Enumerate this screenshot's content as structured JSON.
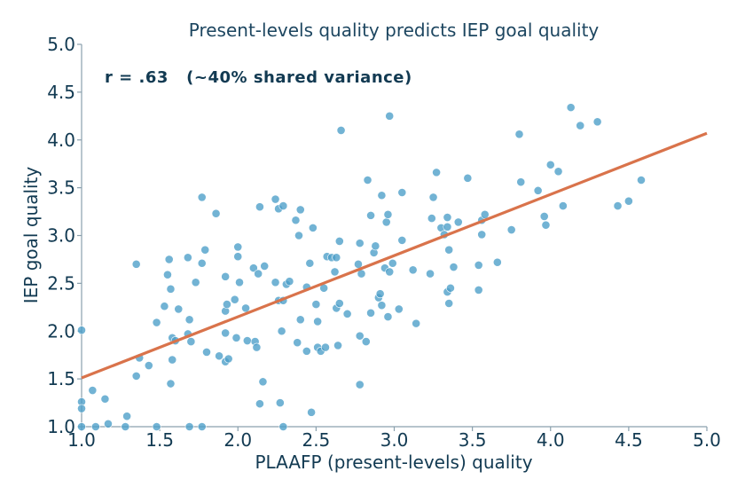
{
  "chart_data": {
    "type": "scatter",
    "title": "Present-levels quality predicts IEP goal quality",
    "xlabel": "PLAAFP (present-levels) quality",
    "ylabel": "IEP goal quality",
    "xlim": [
      1.0,
      5.0
    ],
    "ylim": [
      1.0,
      5.0
    ],
    "xticks": [
      1.0,
      1.5,
      2.0,
      2.5,
      3.0,
      3.5,
      4.0,
      4.5,
      5.0
    ],
    "yticks": [
      1.0,
      1.5,
      2.0,
      2.5,
      3.0,
      3.5,
      4.0,
      4.5,
      5.0
    ],
    "tick_labels_x": [
      "1.0",
      "1.5",
      "2.0",
      "2.5",
      "3.0",
      "3.5",
      "4.0",
      "4.5",
      "5.0"
    ],
    "tick_labels_y": [
      "1.0",
      "1.5",
      "2.0",
      "2.5",
      "3.0",
      "3.5",
      "4.0",
      "4.5",
      "5.0"
    ],
    "annotation": "r = .63   (~40% shared variance)",
    "grid": false,
    "colors": {
      "points": "#4a9ec8",
      "fit_line": "#d9734b",
      "text": "#123a52"
    },
    "fit_line": {
      "x": [
        1.0,
        5.0
      ],
      "y": [
        1.51,
        4.07
      ]
    },
    "points": [
      [
        1.0,
        2.01
      ],
      [
        1.0,
        1.26
      ],
      [
        1.0,
        1.19
      ],
      [
        1.0,
        1.0
      ],
      [
        1.07,
        1.38
      ],
      [
        1.09,
        1.0
      ],
      [
        1.15,
        1.29
      ],
      [
        1.17,
        1.03
      ],
      [
        1.28,
        1.0
      ],
      [
        1.29,
        1.11
      ],
      [
        1.35,
        2.7
      ],
      [
        1.35,
        1.53
      ],
      [
        1.37,
        1.72
      ],
      [
        1.43,
        1.64
      ],
      [
        1.48,
        2.09
      ],
      [
        1.48,
        1.0
      ],
      [
        1.53,
        2.26
      ],
      [
        1.55,
        2.59
      ],
      [
        1.56,
        2.75
      ],
      [
        1.57,
        2.44
      ],
      [
        1.57,
        1.45
      ],
      [
        1.58,
        1.93
      ],
      [
        1.58,
        1.7
      ],
      [
        1.6,
        1.9
      ],
      [
        1.62,
        2.23
      ],
      [
        1.68,
        2.77
      ],
      [
        1.68,
        1.97
      ],
      [
        1.69,
        2.12
      ],
      [
        1.69,
        1.0
      ],
      [
        1.7,
        1.89
      ],
      [
        1.73,
        2.51
      ],
      [
        1.77,
        3.4
      ],
      [
        1.77,
        2.71
      ],
      [
        1.77,
        1.0
      ],
      [
        1.79,
        2.85
      ],
      [
        1.8,
        1.78
      ],
      [
        1.86,
        3.23
      ],
      [
        1.88,
        1.74
      ],
      [
        1.92,
        2.57
      ],
      [
        1.92,
        2.21
      ],
      [
        1.92,
        1.98
      ],
      [
        1.92,
        1.68
      ],
      [
        1.93,
        2.28
      ],
      [
        1.94,
        1.71
      ],
      [
        1.98,
        2.33
      ],
      [
        1.99,
        1.93
      ],
      [
        2.0,
        2.88
      ],
      [
        2.0,
        2.78
      ],
      [
        2.01,
        2.51
      ],
      [
        2.05,
        2.24
      ],
      [
        2.06,
        1.9
      ],
      [
        2.1,
        2.66
      ],
      [
        2.11,
        1.89
      ],
      [
        2.12,
        1.83
      ],
      [
        2.13,
        2.6
      ],
      [
        2.14,
        3.3
      ],
      [
        2.14,
        1.24
      ],
      [
        2.16,
        1.47
      ],
      [
        2.17,
        2.68
      ],
      [
        2.24,
        3.38
      ],
      [
        2.24,
        2.51
      ],
      [
        2.26,
        2.32
      ],
      [
        2.26,
        3.28
      ],
      [
        2.27,
        1.25
      ],
      [
        2.28,
        2.0
      ],
      [
        2.29,
        3.31
      ],
      [
        2.29,
        2.32
      ],
      [
        2.29,
        1.0
      ],
      [
        2.31,
        2.49
      ],
      [
        2.33,
        2.52
      ],
      [
        2.37,
        3.16
      ],
      [
        2.38,
        1.88
      ],
      [
        2.39,
        3.0
      ],
      [
        2.4,
        3.27
      ],
      [
        2.4,
        2.12
      ],
      [
        2.44,
        2.46
      ],
      [
        2.44,
        1.79
      ],
      [
        2.46,
        2.71
      ],
      [
        2.47,
        1.15
      ],
      [
        2.48,
        3.08
      ],
      [
        2.5,
        2.28
      ],
      [
        2.51,
        2.1
      ],
      [
        2.51,
        1.83
      ],
      [
        2.53,
        1.79
      ],
      [
        2.55,
        2.45
      ],
      [
        2.56,
        1.83
      ],
      [
        2.57,
        2.78
      ],
      [
        2.6,
        2.77
      ],
      [
        2.62,
        2.62
      ],
      [
        2.63,
        2.77
      ],
      [
        2.63,
        2.24
      ],
      [
        2.64,
        1.85
      ],
      [
        2.65,
        2.29
      ],
      [
        2.65,
        2.94
      ],
      [
        2.66,
        4.1
      ],
      [
        2.7,
        2.18
      ],
      [
        2.77,
        2.7
      ],
      [
        2.78,
        1.95
      ],
      [
        2.78,
        2.92
      ],
      [
        2.78,
        1.44
      ],
      [
        2.79,
        2.6
      ],
      [
        2.82,
        1.89
      ],
      [
        2.83,
        3.58
      ],
      [
        2.85,
        3.21
      ],
      [
        2.85,
        2.19
      ],
      [
        2.87,
        2.82
      ],
      [
        2.88,
        2.89
      ],
      [
        2.9,
        2.35
      ],
      [
        2.91,
        2.39
      ],
      [
        2.92,
        3.42
      ],
      [
        2.92,
        2.27
      ],
      [
        2.94,
        2.66
      ],
      [
        2.95,
        3.14
      ],
      [
        2.96,
        2.15
      ],
      [
        2.96,
        3.22
      ],
      [
        2.97,
        2.62
      ],
      [
        2.97,
        4.25
      ],
      [
        2.99,
        2.71
      ],
      [
        3.03,
        2.23
      ],
      [
        3.05,
        3.45
      ],
      [
        3.05,
        2.95
      ],
      [
        3.12,
        2.64
      ],
      [
        3.14,
        2.08
      ],
      [
        3.23,
        2.6
      ],
      [
        3.24,
        3.18
      ],
      [
        3.25,
        3.4
      ],
      [
        3.27,
        3.66
      ],
      [
        3.3,
        3.08
      ],
      [
        3.32,
        3.01
      ],
      [
        3.34,
        3.19
      ],
      [
        3.34,
        3.09
      ],
      [
        3.34,
        2.41
      ],
      [
        3.35,
        2.85
      ],
      [
        3.35,
        2.29
      ],
      [
        3.36,
        2.45
      ],
      [
        3.38,
        2.67
      ],
      [
        3.41,
        3.14
      ],
      [
        3.47,
        3.6
      ],
      [
        3.54,
        2.69
      ],
      [
        3.54,
        2.43
      ],
      [
        3.56,
        3.01
      ],
      [
        3.56,
        3.16
      ],
      [
        3.58,
        3.22
      ],
      [
        3.66,
        2.72
      ],
      [
        3.75,
        3.06
      ],
      [
        3.8,
        4.06
      ],
      [
        3.81,
        3.56
      ],
      [
        3.92,
        3.47
      ],
      [
        3.96,
        3.2
      ],
      [
        3.97,
        3.11
      ],
      [
        4.0,
        3.74
      ],
      [
        4.05,
        3.67
      ],
      [
        4.08,
        3.31
      ],
      [
        4.13,
        4.34
      ],
      [
        4.19,
        4.15
      ],
      [
        4.3,
        4.19
      ],
      [
        4.43,
        3.31
      ],
      [
        4.5,
        3.36
      ],
      [
        4.58,
        3.58
      ]
    ]
  }
}
